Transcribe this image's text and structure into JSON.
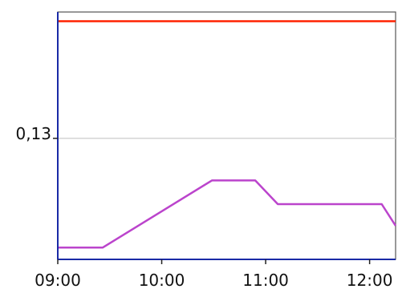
{
  "chart_data": {
    "type": "line",
    "title": "",
    "xlabel": "",
    "ylabel": "",
    "x_ticks": [
      {
        "value": 0,
        "label": "09:00"
      },
      {
        "value": 60,
        "label": "10:00"
      },
      {
        "value": 120,
        "label": "11:00"
      },
      {
        "value": 180,
        "label": "12:00"
      }
    ],
    "y_ticks": [
      {
        "value": 0.13,
        "label": "0,13"
      }
    ],
    "xlim": [
      0,
      195
    ],
    "ylim": [
      0.084,
      0.178
    ],
    "grid": "horizontal at y tick",
    "legend": "none",
    "series": [
      {
        "color": "#ff2200",
        "x": [
          0,
          195
        ],
        "y": [
          0.1745,
          0.1745
        ]
      },
      {
        "color": "#bb44cc",
        "x": [
          0,
          26,
          89,
          114,
          127,
          187,
          195
        ],
        "y": [
          0.0885,
          0.0885,
          0.114,
          0.114,
          0.105,
          0.105,
          0.0968
        ]
      }
    ],
    "colors": {
      "axis": "#1a2aa6",
      "frame": "#555555",
      "grid": "#d4d4d4",
      "background": "#ffffff"
    }
  }
}
